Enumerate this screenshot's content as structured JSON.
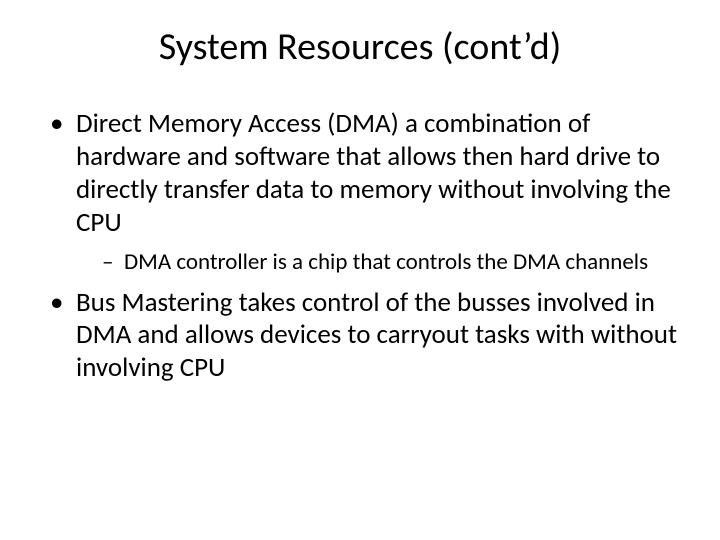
{
  "slide": {
    "background_color": "#ffffff",
    "text_color": "#000000",
    "title": "System Resources (cont’d)",
    "title_fontsize": 38,
    "body_fontsize_l1": 27,
    "body_fontsize_l2": 23,
    "bullets": [
      {
        "text": "Direct Memory Access (DMA) a combination of hardware and software that allows then hard drive to directly transfer data to memory without involving the CPU",
        "children": [
          {
            "text": "DMA controller is a chip that controls the DMA channels"
          }
        ]
      },
      {
        "text": "Bus Mastering takes control of the busses involved in DMA and allows devices to carryout tasks with without involving CPU",
        "children": []
      }
    ]
  }
}
